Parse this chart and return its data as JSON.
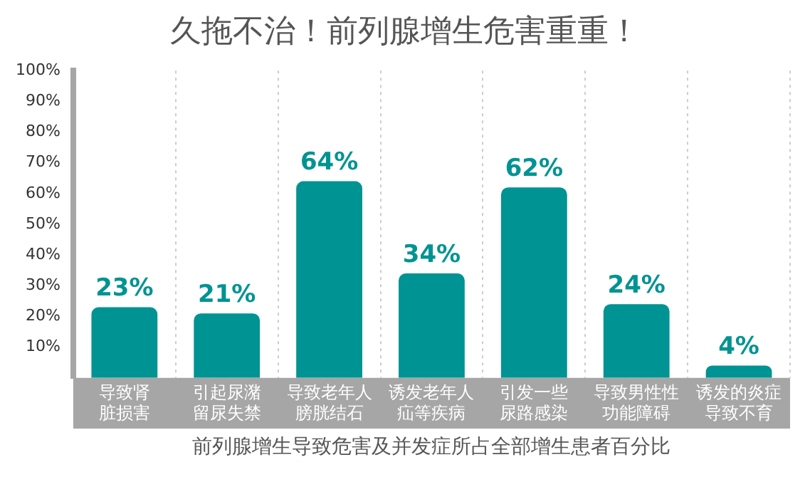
{
  "chart_data": {
    "type": "bar",
    "title": "久拖不治！前列腺增生危害重重！",
    "xlabel": "前列腺增生导致危害及并发症所占全部增生患者百分比",
    "categories": [
      "导致肾脏损害",
      "引起尿潴留尿失禁",
      "导致老年人膀胱结石",
      "诱发老年人疝等疾病",
      "引发一些尿路感染",
      "导致男性性功能障碍",
      "诱发的炎症导致不育"
    ],
    "values": [
      23,
      21,
      64,
      34,
      62,
      24,
      4
    ],
    "value_labels": [
      "23%",
      "21%",
      "64%",
      "34%",
      "62%",
      "24%",
      "4%"
    ],
    "color": "#009393",
    "ylim": [
      0,
      100
    ],
    "yticks": [
      {
        "value": 10,
        "label": "10%"
      },
      {
        "value": 20,
        "label": "20%"
      },
      {
        "value": 30,
        "label": "30%"
      },
      {
        "value": 40,
        "label": "40%"
      },
      {
        "value": 50,
        "label": "50%"
      },
      {
        "value": 60,
        "label": "60%"
      },
      {
        "value": 70,
        "label": "70%"
      },
      {
        "value": 80,
        "label": "80%"
      },
      {
        "value": 90,
        "label": "90%"
      },
      {
        "value": 100,
        "label": "100%"
      }
    ],
    "grid": "x",
    "legend": false
  }
}
